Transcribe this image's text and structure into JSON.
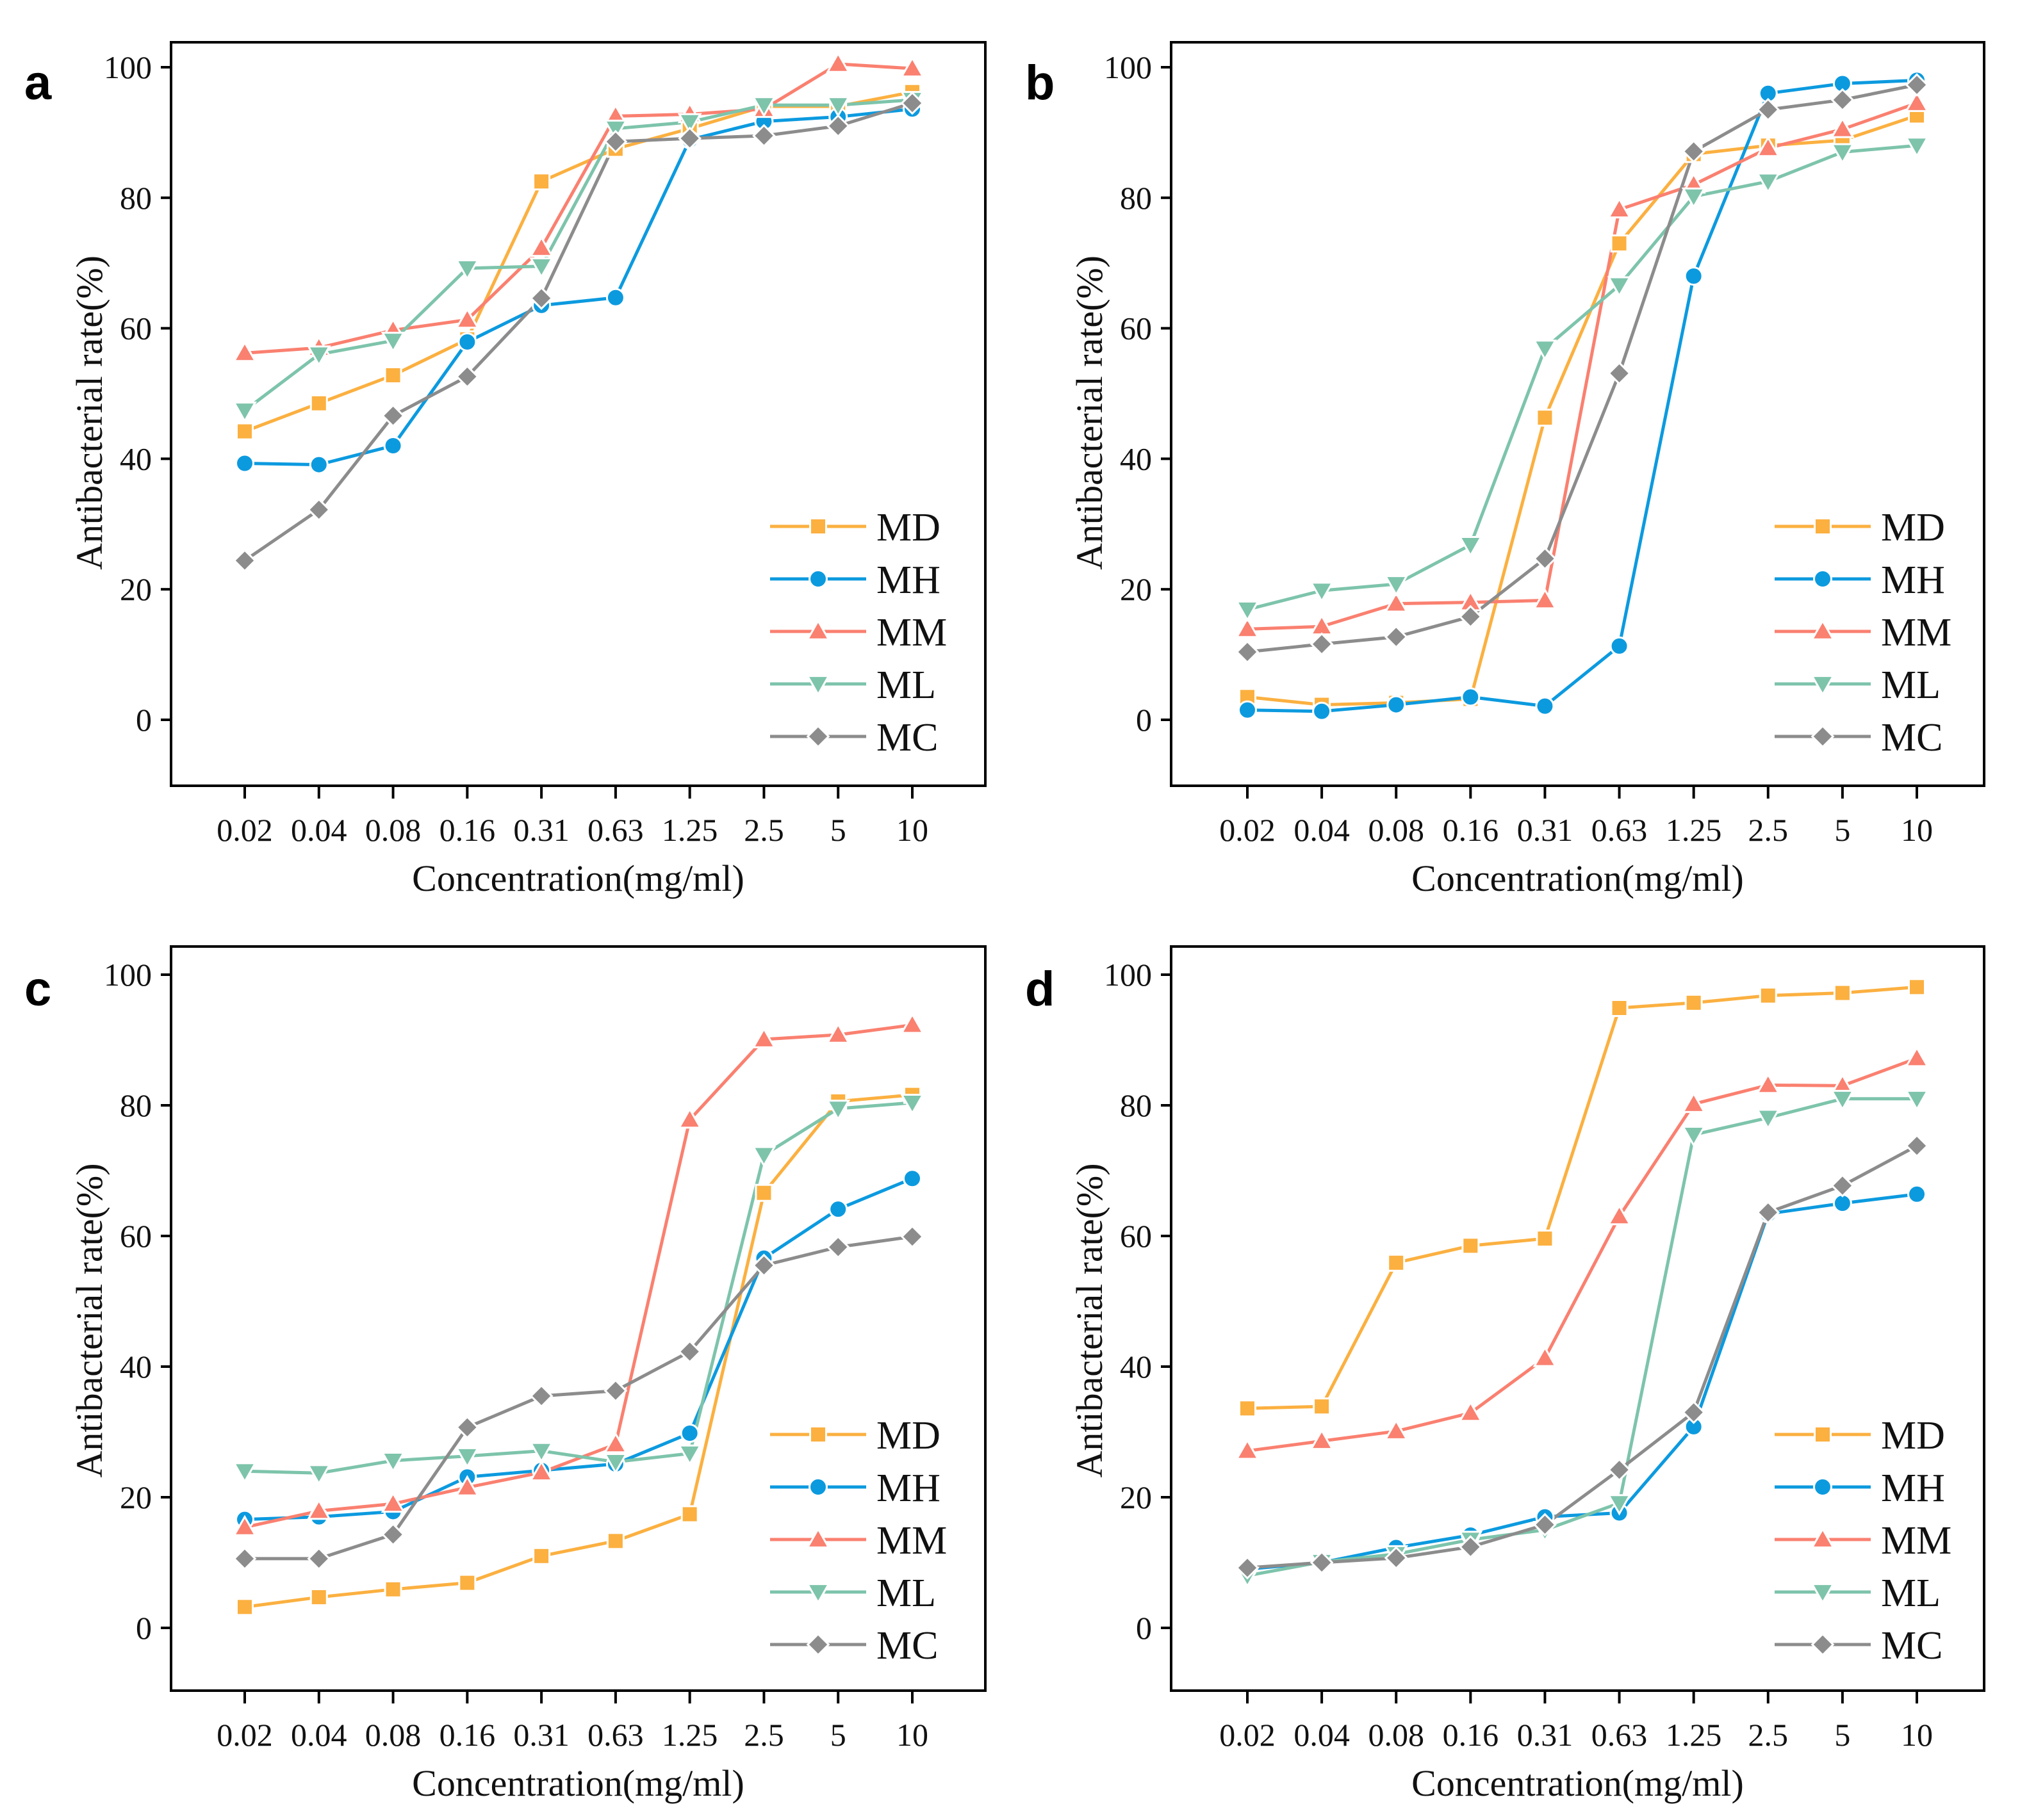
{
  "figure": {
    "series_styles": [
      {
        "name": "MD",
        "color": "#FBB040",
        "marker": "square"
      },
      {
        "name": "MH",
        "color": "#0C9ADF",
        "marker": "circle"
      },
      {
        "name": "MM",
        "color": "#FA8070",
        "marker": "triangle-up"
      },
      {
        "name": "ML",
        "color": "#7DC4AB",
        "marker": "triangle-down"
      },
      {
        "name": "MC",
        "color": "#8C8C8C",
        "marker": "diamond"
      }
    ]
  },
  "chart_data": [
    {
      "panel": "a",
      "type": "line",
      "title": "",
      "xlabel": "Concentration(mg/ml)",
      "ylabel": "Antibacterial rate(%)",
      "categories": [
        "0.02",
        "0.04",
        "0.08",
        "0.16",
        "0.31",
        "0.63",
        "1.25",
        "2.5",
        "5",
        "10"
      ],
      "yticks": [
        0,
        20,
        40,
        60,
        80,
        100
      ],
      "ylim": [
        -10,
        104
      ],
      "grid": false,
      "legend_position": "bottom-right",
      "series": [
        {
          "name": "MD",
          "values": [
            44.2,
            48.5,
            52.8,
            58.3,
            82.5,
            87.5,
            90.6,
            94.0,
            94.0,
            96.2
          ]
        },
        {
          "name": "MH",
          "values": [
            39.3,
            39.1,
            42.0,
            57.9,
            63.5,
            64.7,
            88.9,
            91.7,
            92.4,
            93.6
          ]
        },
        {
          "name": "MM",
          "values": [
            56.2,
            57.0,
            59.7,
            61.3,
            72.3,
            92.5,
            92.8,
            93.6,
            100.5,
            99.8
          ]
        },
        {
          "name": "ML",
          "values": [
            47.4,
            56.0,
            58.1,
            69.2,
            69.5,
            90.6,
            91.6,
            94.2,
            94.2,
            95.0
          ]
        },
        {
          "name": "MC",
          "values": [
            24.4,
            32.2,
            46.6,
            52.6,
            64.6,
            88.6,
            89.1,
            89.5,
            91.0,
            94.5
          ]
        }
      ]
    },
    {
      "panel": "b",
      "type": "line",
      "title": "",
      "xlabel": "Concentration(mg/ml)",
      "ylabel": "Antibacterial rate(%)",
      "categories": [
        "0.02",
        "0.04",
        "0.08",
        "0.16",
        "0.31",
        "0.63",
        "1.25",
        "2.5",
        "5",
        "10"
      ],
      "yticks": [
        0,
        20,
        40,
        60,
        80,
        100
      ],
      "ylim": [
        -10,
        104
      ],
      "grid": false,
      "legend_position": "bottom-right",
      "series": [
        {
          "name": "MD",
          "values": [
            3.5,
            2.3,
            2.6,
            3.2,
            46.3,
            73.0,
            86.7,
            88.0,
            88.8,
            92.6
          ]
        },
        {
          "name": "MH",
          "values": [
            1.5,
            1.3,
            2.3,
            3.5,
            2.1,
            11.3,
            68.0,
            96.0,
            97.5,
            98.0
          ]
        },
        {
          "name": "MM",
          "values": [
            13.9,
            14.3,
            17.8,
            18.0,
            18.3,
            78.2,
            82.0,
            87.6,
            90.5,
            94.5
          ]
        },
        {
          "name": "ML",
          "values": [
            16.9,
            19.8,
            20.8,
            26.8,
            56.9,
            66.6,
            80.2,
            82.5,
            87.0,
            88.0
          ]
        },
        {
          "name": "MC",
          "values": [
            10.4,
            11.6,
            12.7,
            15.8,
            24.7,
            53.1,
            87.1,
            93.5,
            95.0,
            97.3
          ]
        }
      ]
    },
    {
      "panel": "c",
      "type": "line",
      "title": "",
      "xlabel": "Concentration(mg/ml)",
      "ylabel": "Antibacterial rate(%)",
      "categories": [
        "0.02",
        "0.04",
        "0.08",
        "0.16",
        "0.31",
        "0.63",
        "1.25",
        "2.5",
        "5",
        "10"
      ],
      "yticks": [
        0,
        20,
        40,
        60,
        80,
        100
      ],
      "ylim": [
        -10,
        104
      ],
      "grid": false,
      "legend_position": "bottom-right",
      "series": [
        {
          "name": "MD",
          "values": [
            3.2,
            4.7,
            5.9,
            6.9,
            11.0,
            13.3,
            17.4,
            66.6,
            80.6,
            81.6
          ]
        },
        {
          "name": "MH",
          "values": [
            16.6,
            17.0,
            17.8,
            23.1,
            24.1,
            25.1,
            29.8,
            56.6,
            64.1,
            68.8
          ]
        },
        {
          "name": "MM",
          "values": [
            15.4,
            17.9,
            19.0,
            21.5,
            23.8,
            28.1,
            77.8,
            90.1,
            90.8,
            92.3
          ]
        },
        {
          "name": "ML",
          "values": [
            24.0,
            23.7,
            25.6,
            26.3,
            27.1,
            25.4,
            26.7,
            72.4,
            79.5,
            80.4
          ]
        },
        {
          "name": "MC",
          "values": [
            10.6,
            10.6,
            14.3,
            30.7,
            35.5,
            36.3,
            42.3,
            55.5,
            58.3,
            59.9
          ]
        }
      ]
    },
    {
      "panel": "d",
      "type": "line",
      "title": "",
      "xlabel": "Concentration(mg/ml)",
      "ylabel": "Antibacterial rate(%)",
      "categories": [
        "0.02",
        "0.04",
        "0.08",
        "0.16",
        "0.31",
        "0.63",
        "1.25",
        "2.5",
        "5",
        "10"
      ],
      "yticks": [
        0,
        20,
        40,
        60,
        80,
        100
      ],
      "ylim": [
        -10,
        104
      ],
      "grid": false,
      "legend_position": "bottom-right",
      "series": [
        {
          "name": "MD",
          "values": [
            33.6,
            33.9,
            55.9,
            58.5,
            59.6,
            94.9,
            95.7,
            96.8,
            97.2,
            98.1
          ]
        },
        {
          "name": "MH",
          "values": [
            9.0,
            10.0,
            12.3,
            14.2,
            17.0,
            17.6,
            30.8,
            63.4,
            65.0,
            66.4
          ]
        },
        {
          "name": "MM",
          "values": [
            27.1,
            28.6,
            30.1,
            32.9,
            41.3,
            63.0,
            80.2,
            83.1,
            83.0,
            87.2
          ]
        },
        {
          "name": "ML",
          "values": [
            8.0,
            10.1,
            11.3,
            13.5,
            15.0,
            19.1,
            75.5,
            78.1,
            81.0,
            81.0
          ]
        },
        {
          "name": "MC",
          "values": [
            9.2,
            10.0,
            10.7,
            12.4,
            15.8,
            24.2,
            33.0,
            63.6,
            67.7,
            73.8
          ]
        }
      ]
    }
  ]
}
